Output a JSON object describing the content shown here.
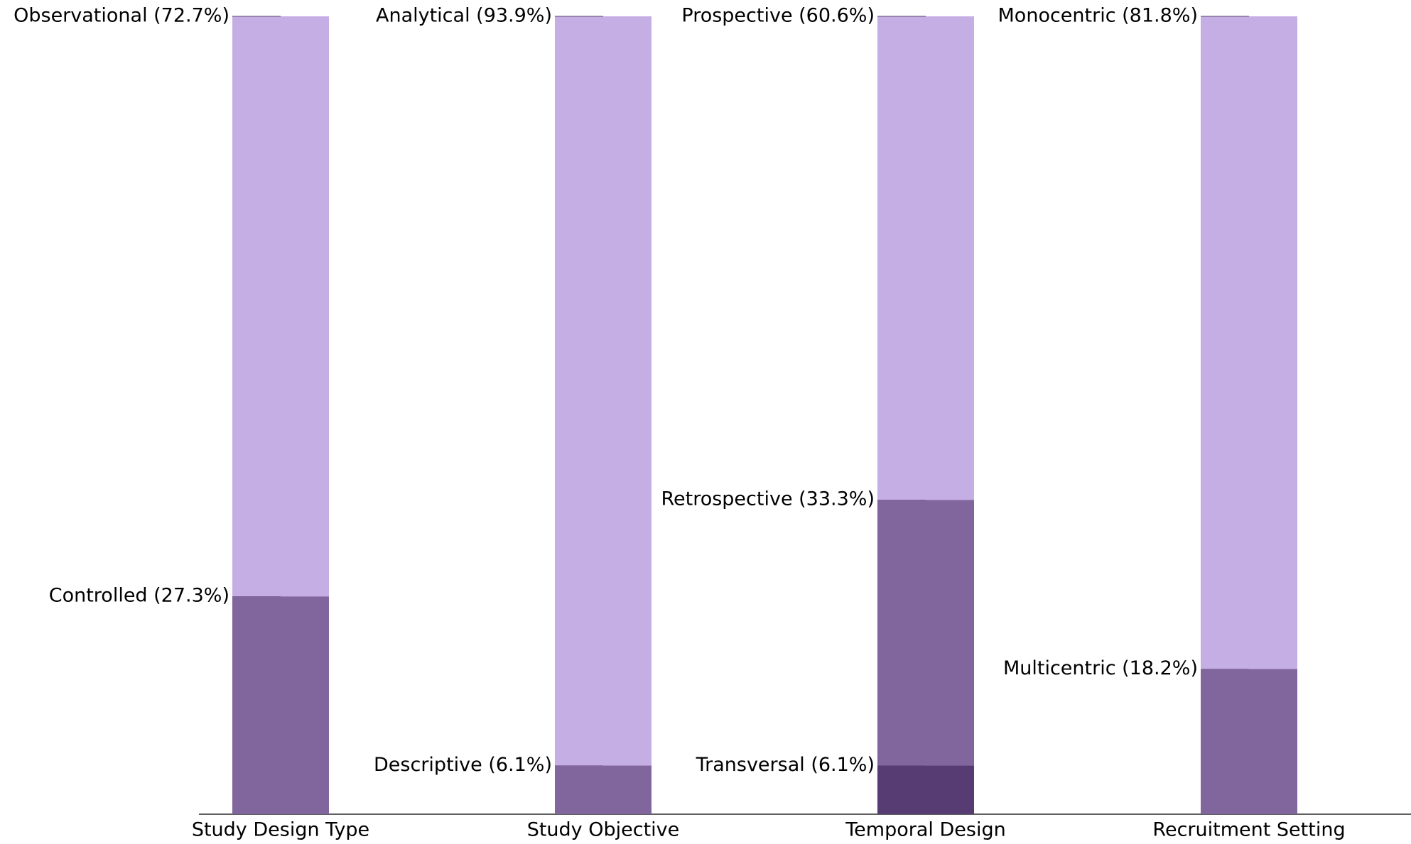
{
  "chart_data": {
    "type": "stacked-bar",
    "categories": [
      "Study Design Type",
      "Study Objective",
      "Temporal Design",
      "Recruitment Setting"
    ],
    "ylim": [
      0,
      100
    ],
    "stacks": [
      {
        "segments": [
          {
            "label": "Controlled (27.3%)",
            "value": 27.3,
            "color": "#80669d"
          },
          {
            "label": "Observational (72.7%)",
            "value": 72.7,
            "color": "#c5aee3"
          }
        ]
      },
      {
        "segments": [
          {
            "label": "Descriptive (6.1%)",
            "value": 6.1,
            "color": "#80669d"
          },
          {
            "label": "Analytical (93.9%)",
            "value": 93.9,
            "color": "#c5aee3"
          }
        ]
      },
      {
        "segments": [
          {
            "label": "Transversal (6.1%)",
            "value": 6.1,
            "color": "#573b73"
          },
          {
            "label": "Retrospective (33.3%)",
            "value": 33.3,
            "color": "#80669d"
          },
          {
            "label": "Prospective (60.6%)",
            "value": 60.6,
            "color": "#c5aee3"
          }
        ]
      },
      {
        "segments": [
          {
            "label": "Multicentric (18.2%)",
            "value": 18.2,
            "color": "#80669d"
          },
          {
            "label": "Monocentric (81.8%)",
            "value": 81.8,
            "color": "#c5aee3"
          }
        ]
      }
    ]
  }
}
